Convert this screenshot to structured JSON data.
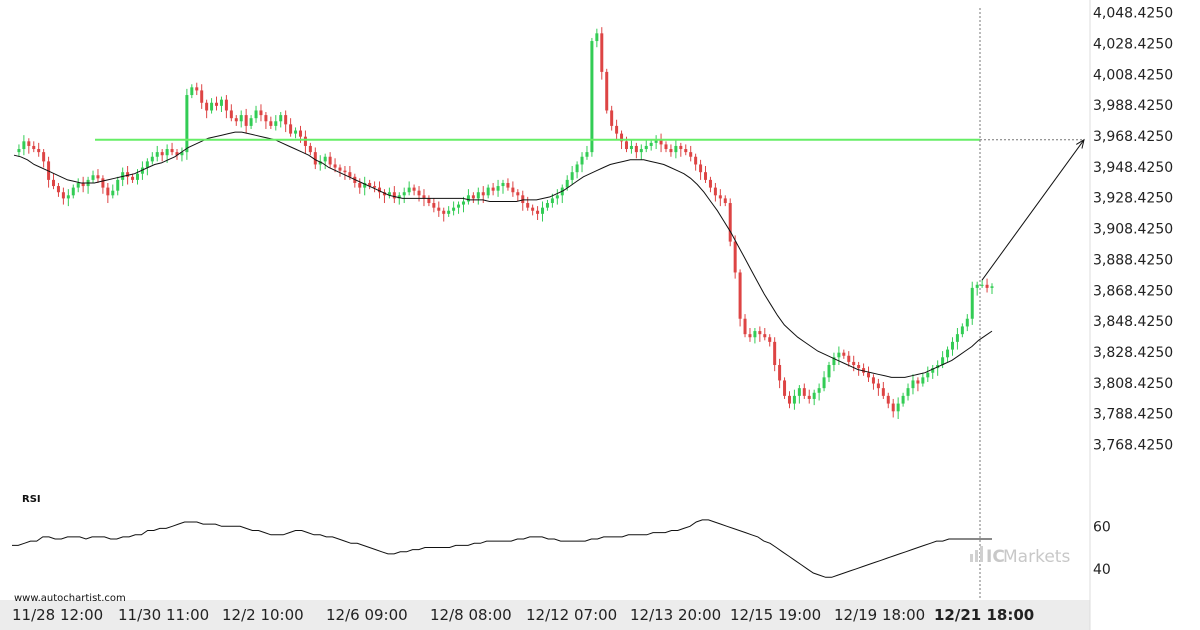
{
  "watermark": "www.autochartist.com",
  "logo_text": "Markets",
  "logo_prefix": "IC",
  "chart_data": {
    "type": "candlestick",
    "ylim": [
      3758.425,
      4051.425
    ],
    "y_ticks": [
      "4,048.4250",
      "4,028.4250",
      "4,008.4250",
      "3,988.4250",
      "3,968.4250",
      "3,948.4250",
      "3,928.4250",
      "3,908.4250",
      "3,888.4250",
      "3,868.4250",
      "3,848.4250",
      "3,828.4250",
      "3,808.4250",
      "3,788.4250",
      "3,768.4250"
    ],
    "y_tick_values": [
      4048.425,
      4028.425,
      4008.425,
      3988.425,
      3968.425,
      3948.425,
      3928.425,
      3908.425,
      3888.425,
      3868.425,
      3848.425,
      3828.425,
      3808.425,
      3788.425,
      3768.425
    ],
    "x_ticks": [
      "11/28 12:00",
      "11/30 11:00",
      "12/2 10:00",
      "12/6 09:00",
      "12/8 08:00",
      "12/12 07:00",
      "12/13 20:00",
      "12/15 19:00",
      "12/19 18:00",
      "12/21 18:00"
    ],
    "current_time_label": "12/21 18:00",
    "resistance_level": 3966.0,
    "forecast": {
      "from": 3875.0,
      "to": 3966.0
    },
    "closes": [
      3958,
      3960,
      3965,
      3962,
      3960,
      3958,
      3952,
      3940,
      3936,
      3932,
      3928,
      3930,
      3935,
      3938,
      3936,
      3940,
      3943,
      3941,
      3935,
      3930,
      3933,
      3940,
      3945,
      3942,
      3940,
      3944,
      3948,
      3952,
      3955,
      3958,
      3956,
      3960,
      3958,
      3956,
      3958,
      3995,
      4000,
      3998,
      3990,
      3985,
      3990,
      3988,
      3992,
      3985,
      3980,
      3978,
      3982,
      3975,
      3980,
      3985,
      3982,
      3978,
      3975,
      3978,
      3982,
      3976,
      3970,
      3972,
      3968,
      3962,
      3958,
      3950,
      3952,
      3955,
      3950,
      3948,
      3946,
      3945,
      3942,
      3938,
      3935,
      3938,
      3936,
      3935,
      3932,
      3930,
      3932,
      3928,
      3930,
      3932,
      3935,
      3933,
      3930,
      3928,
      3925,
      3922,
      3920,
      3918,
      3920,
      3922,
      3924,
      3926,
      3930,
      3928,
      3932,
      3930,
      3935,
      3933,
      3936,
      3938,
      3935,
      3932,
      3930,
      3925,
      3922,
      3920,
      3918,
      3922,
      3925,
      3928,
      3930,
      3935,
      3940,
      3945,
      3950,
      3955,
      3958,
      4030,
      4035,
      4010,
      3985,
      3975,
      3970,
      3965,
      3960,
      3962,
      3958,
      3960,
      3962,
      3964,
      3966,
      3963,
      3960,
      3958,
      3962,
      3960,
      3958,
      3955,
      3950,
      3945,
      3940,
      3935,
      3930,
      3928,
      3925,
      3900,
      3880,
      3850,
      3840,
      3838,
      3842,
      3840,
      3838,
      3835,
      3820,
      3810,
      3800,
      3795,
      3800,
      3805,
      3800,
      3798,
      3802,
      3805,
      3812,
      3820,
      3825,
      3828,
      3826,
      3822,
      3820,
      3818,
      3815,
      3812,
      3808,
      3805,
      3800,
      3795,
      3790,
      3795,
      3800,
      3805,
      3810,
      3808,
      3812,
      3815,
      3818,
      3820,
      3825,
      3830,
      3835,
      3840,
      3845,
      3850,
      3870,
      3872,
      3872,
      3870,
      3871
    ],
    "ma": [
      3956,
      3955,
      3953,
      3950,
      3948,
      3946,
      3944,
      3942,
      3940,
      3939,
      3938,
      3938,
      3938,
      3939,
      3940,
      3941,
      3942,
      3943,
      3944,
      3946,
      3948,
      3950,
      3951,
      3953,
      3955,
      3958,
      3961,
      3963,
      3965,
      3967,
      3968,
      3969,
      3970,
      3971,
      3971,
      3970,
      3969,
      3968,
      3967,
      3966,
      3964,
      3962,
      3960,
      3958,
      3956,
      3953,
      3951,
      3948,
      3946,
      3944,
      3942,
      3940,
      3938,
      3936,
      3934,
      3932,
      3930,
      3929,
      3928,
      3928,
      3928,
      3928,
      3928,
      3928,
      3928,
      3928,
      3928,
      3928,
      3927,
      3927,
      3927,
      3926,
      3926,
      3926,
      3926,
      3926,
      3927,
      3927,
      3927,
      3928,
      3929,
      3931,
      3933,
      3936,
      3939,
      3942,
      3944,
      3946,
      3948,
      3950,
      3951,
      3952,
      3953,
      3953,
      3953,
      3952,
      3951,
      3950,
      3948,
      3946,
      3944,
      3941,
      3937,
      3932,
      3926,
      3920,
      3913,
      3906,
      3898,
      3890,
      3882,
      3874,
      3866,
      3859,
      3852,
      3846,
      3842,
      3838,
      3835,
      3832,
      3829,
      3827,
      3825,
      3823,
      3821,
      3819,
      3817,
      3816,
      3815,
      3814,
      3813,
      3812,
      3812,
      3812,
      3813,
      3814,
      3815,
      3817,
      3819,
      3821,
      3823,
      3826,
      3829,
      3832,
      3836,
      3839,
      3842
    ],
    "rsi": {
      "label": "RSI",
      "ylim": [
        30,
        70
      ],
      "ticks": [
        "60",
        "40"
      ],
      "tick_values": [
        60,
        40
      ],
      "values": [
        51,
        51,
        52,
        53,
        53,
        55,
        55,
        54,
        54,
        55,
        55,
        55,
        54,
        55,
        55,
        55,
        54,
        54,
        55,
        55,
        56,
        56,
        58,
        58,
        59,
        59,
        60,
        61,
        62,
        62,
        62,
        61,
        61,
        61,
        60,
        60,
        60,
        60,
        59,
        58,
        58,
        57,
        56,
        56,
        56,
        57,
        58,
        58,
        57,
        56,
        56,
        55,
        55,
        54,
        53,
        52,
        52,
        51,
        50,
        49,
        48,
        47,
        47,
        48,
        48,
        49,
        49,
        50,
        50,
        50,
        50,
        50,
        51,
        51,
        51,
        52,
        52,
        53,
        53,
        53,
        53,
        53,
        54,
        54,
        55,
        55,
        55,
        54,
        54,
        53,
        53,
        53,
        53,
        53,
        54,
        54,
        55,
        55,
        55,
        55,
        56,
        56,
        56,
        56,
        57,
        57,
        57,
        58,
        58,
        59,
        60,
        62,
        63,
        63,
        62,
        61,
        60,
        59,
        58,
        57,
        56,
        55,
        53,
        52,
        50,
        48,
        46,
        44,
        42,
        40,
        38,
        37,
        36,
        36,
        37,
        38,
        39,
        40,
        41,
        42,
        43,
        44,
        45,
        46,
        47,
        48,
        49,
        50,
        51,
        52,
        53,
        53,
        54,
        54,
        54,
        54,
        54,
        54,
        54,
        54
      ]
    }
  }
}
